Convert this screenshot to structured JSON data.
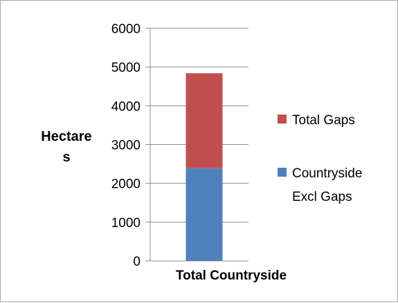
{
  "chart_data": {
    "type": "bar",
    "stacked": true,
    "categories": [
      "Total Countryside"
    ],
    "series": [
      {
        "name": "Countryside Excl Gaps",
        "values": [
          2390
        ],
        "color": "#4f81bd"
      },
      {
        "name": "Total Gaps",
        "values": [
          2450
        ],
        "color": "#c0504d"
      }
    ],
    "ylabel_lines": [
      "Hectare",
      "s"
    ],
    "ylim": [
      0,
      6000
    ],
    "yticks": [
      0,
      1000,
      2000,
      3000,
      4000,
      5000,
      6000
    ],
    "grid": true,
    "legend_position": "right",
    "legend": [
      {
        "lines": [
          "Total Gaps"
        ],
        "color": "#c0504d"
      },
      {
        "lines": [
          "Countryside",
          "Excl Gaps"
        ],
        "color": "#4f81bd"
      }
    ]
  }
}
